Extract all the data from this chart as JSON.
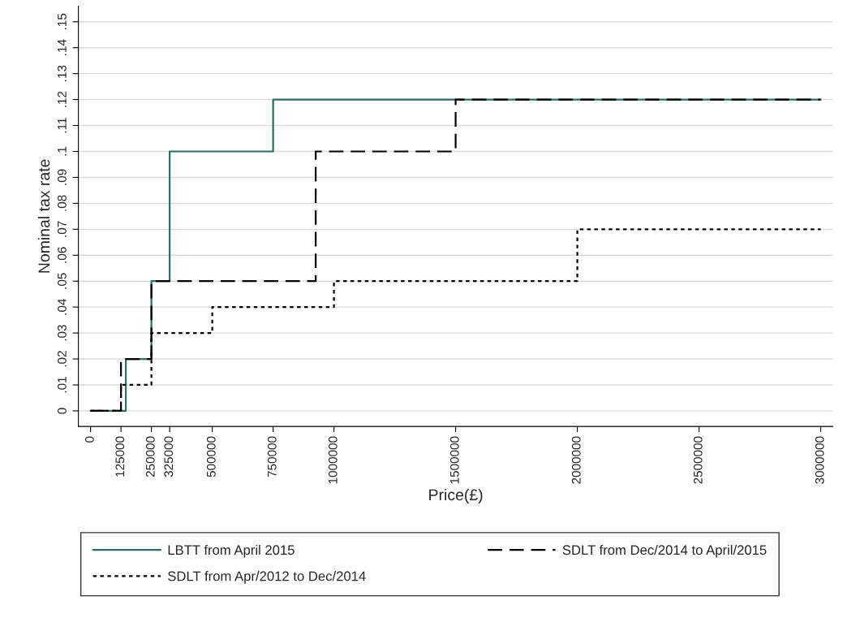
{
  "chart_data": {
    "type": "step",
    "xlabel": "Price(£)",
    "ylabel": "Nominal tax rate",
    "series": [
      {
        "name": "LBTT from April 2015",
        "color": "#2f6f6a",
        "line_style": "solid",
        "x": [
          0,
          145000,
          250000,
          325000,
          750000,
          3000000
        ],
        "values": [
          0,
          0.02,
          0.05,
          0.1,
          0.12,
          0.12
        ]
      },
      {
        "name": "SDLT from Dec/2014 to April/2015",
        "color": "#000000",
        "line_style": "dashed",
        "x": [
          0,
          125000,
          250000,
          925000,
          1500000,
          3000000
        ],
        "values": [
          0,
          0.02,
          0.05,
          0.1,
          0.12,
          0.12
        ]
      },
      {
        "name": "SDLT from Apr/2012 to Dec/2014",
        "color": "#000000",
        "line_style": "dotted",
        "x": [
          0,
          125000,
          250000,
          500000,
          1000000,
          2000000,
          3000000
        ],
        "values": [
          0,
          0.01,
          0.03,
          0.04,
          0.05,
          0.07,
          0.07
        ]
      }
    ],
    "xlim": [
      -50000,
      3050000
    ],
    "xticks": [
      0,
      125000,
      250000,
      325000,
      500000,
      750000,
      1000000,
      1500000,
      2000000,
      2500000,
      3000000
    ],
    "ylim": [
      -0.006,
      0.156
    ],
    "yticks": [
      0,
      {
        "value": 0.01,
        "label": ".01"
      },
      {
        "value": 0.02,
        "label": ".02"
      },
      {
        "value": 0.03,
        "label": ".03"
      },
      {
        "value": 0.04,
        "label": ".04"
      },
      {
        "value": 0.05,
        "label": ".05"
      },
      {
        "value": 0.06,
        "label": ".06"
      },
      {
        "value": 0.07,
        "label": ".07"
      },
      {
        "value": 0.08,
        "label": ".08"
      },
      {
        "value": 0.09,
        "label": ".09"
      },
      {
        "value": 0.1,
        "label": ".1"
      },
      {
        "value": 0.11,
        "label": ".11"
      },
      {
        "value": 0.12,
        "label": ".12"
      },
      {
        "value": 0.13,
        "label": ".13"
      },
      {
        "value": 0.14,
        "label": ".14"
      },
      {
        "value": 0.15,
        "label": ".15"
      }
    ],
    "grid": "y",
    "legend": "bottom"
  }
}
